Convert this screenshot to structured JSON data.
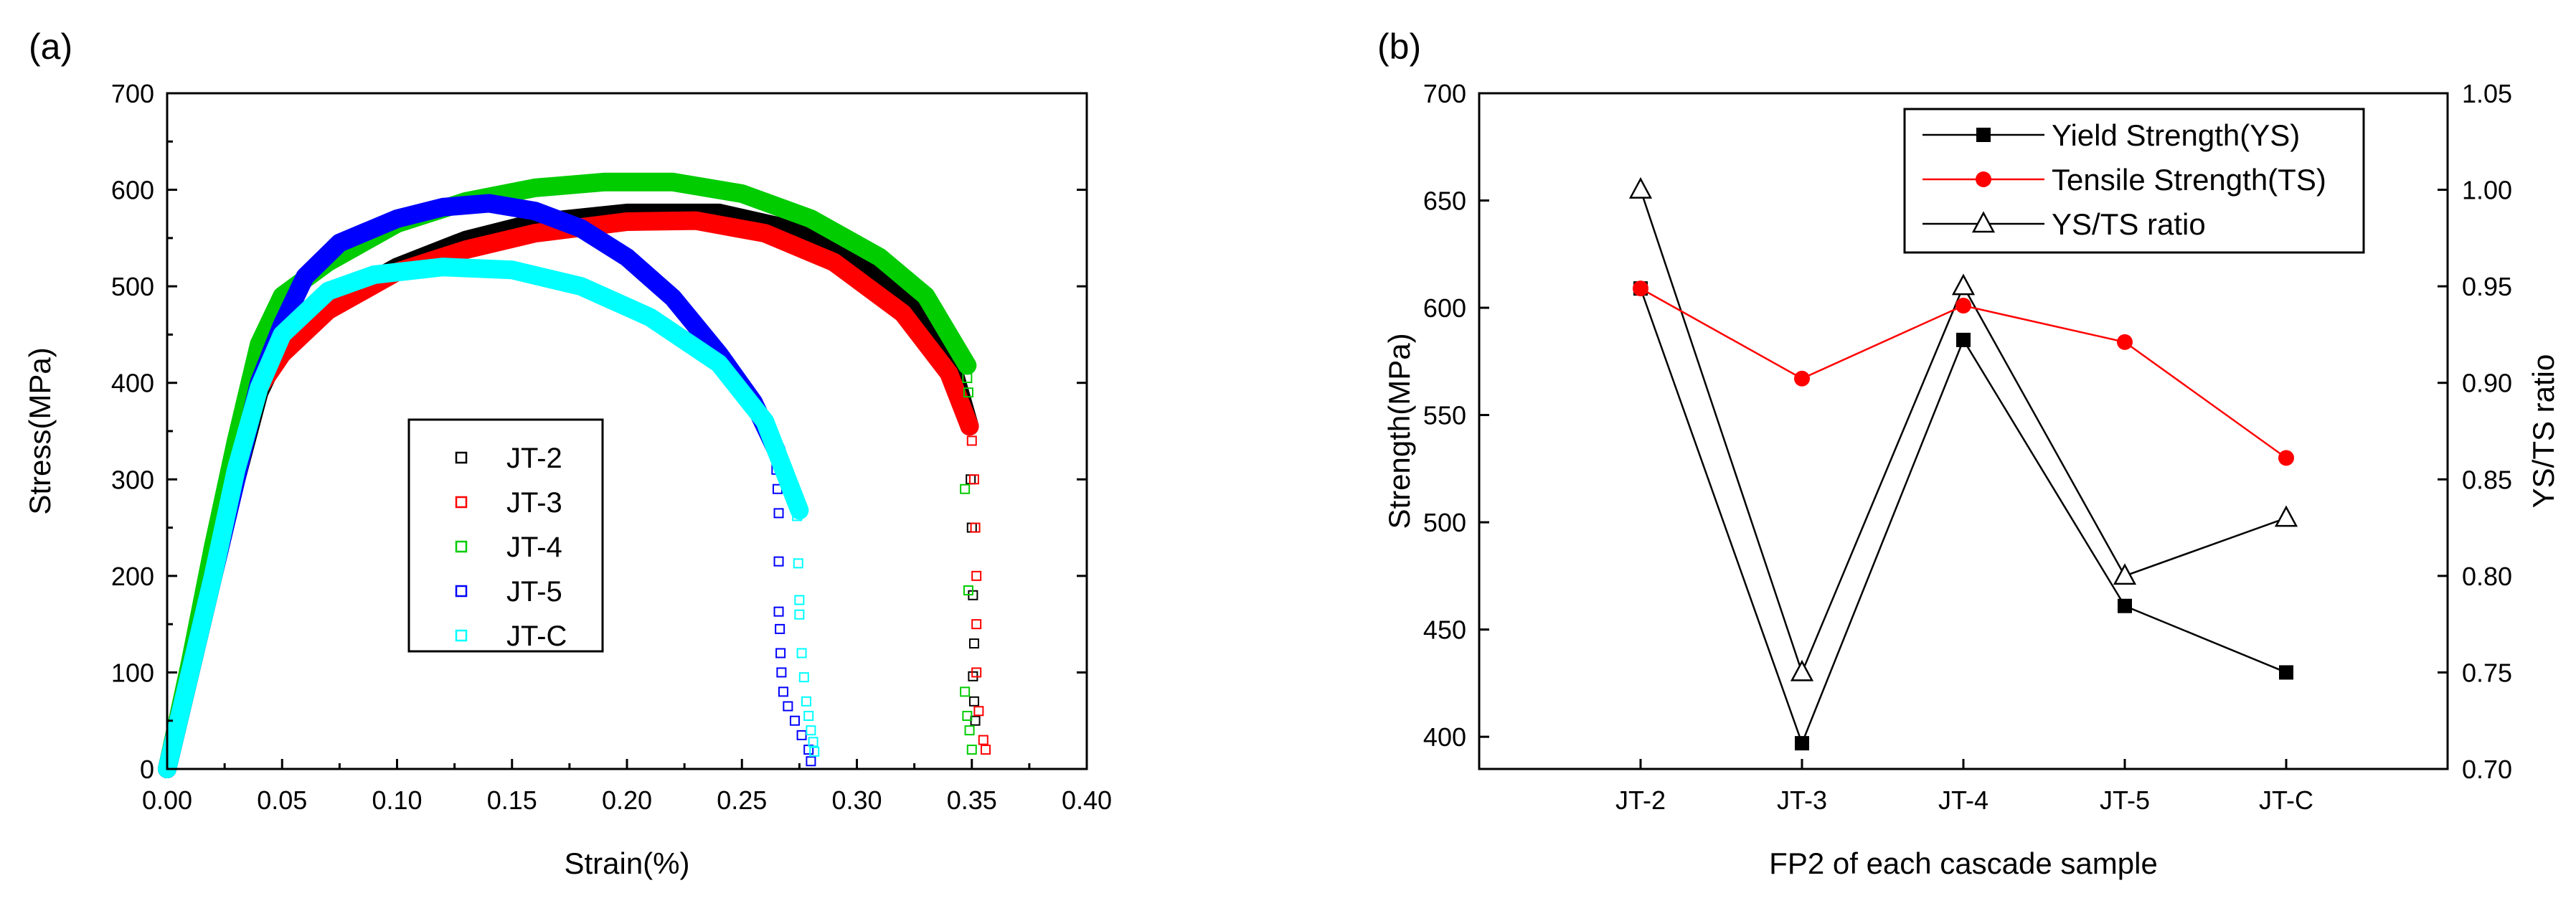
{
  "chart_data": [
    {
      "panel": "(a)",
      "type": "scatter",
      "xlabel": "Strain(%)",
      "ylabel": "Stress(MPa)",
      "xlim": [
        0,
        0.4
      ],
      "ylim": [
        0,
        700
      ],
      "xticks": [
        "0.00",
        "0.05",
        "0.10",
        "0.15",
        "0.20",
        "0.25",
        "0.30",
        "0.35",
        "0.40"
      ],
      "yticks": [
        "0",
        "100",
        "200",
        "300",
        "400",
        "500",
        "600",
        "700"
      ],
      "legend_position": "center-right",
      "series": [
        {
          "name": "JT-2",
          "color": "#000000",
          "curve": [
            [
              0,
              0
            ],
            [
              0.01,
              100
            ],
            [
              0.02,
              200
            ],
            [
              0.03,
              300
            ],
            [
              0.04,
              390
            ],
            [
              0.05,
              440
            ],
            [
              0.07,
              480
            ],
            [
              0.1,
              520
            ],
            [
              0.13,
              548
            ],
            [
              0.16,
              566
            ],
            [
              0.2,
              576
            ],
            [
              0.24,
              576
            ],
            [
              0.27,
              560
            ],
            [
              0.3,
              526
            ],
            [
              0.32,
              490
            ],
            [
              0.34,
              430
            ],
            [
              0.349,
              355
            ]
          ],
          "tail": [
            [
              0.3495,
              300
            ],
            [
              0.35,
              250
            ],
            [
              0.3505,
              180
            ],
            [
              0.351,
              130
            ],
            [
              0.3505,
              96
            ],
            [
              0.351,
              70
            ],
            [
              0.3515,
              50
            ]
          ]
        },
        {
          "name": "JT-3",
          "color": "#ff0000",
          "curve": [
            [
              0,
              0
            ],
            [
              0.01,
              100
            ],
            [
              0.02,
              200
            ],
            [
              0.03,
              310
            ],
            [
              0.04,
              395
            ],
            [
              0.05,
              430
            ],
            [
              0.07,
              475
            ],
            [
              0.1,
              515
            ],
            [
              0.13,
              538
            ],
            [
              0.16,
              555
            ],
            [
              0.2,
              567
            ],
            [
              0.23,
              568
            ],
            [
              0.26,
              555
            ],
            [
              0.29,
              525
            ],
            [
              0.32,
              472
            ],
            [
              0.34,
              410
            ],
            [
              0.349,
              355
            ]
          ],
          "tail": [
            [
              0.35,
              340
            ],
            [
              0.351,
              300
            ],
            [
              0.3515,
              250
            ],
            [
              0.352,
              200
            ],
            [
              0.352,
              150
            ],
            [
              0.352,
              100
            ],
            [
              0.353,
              60
            ],
            [
              0.355,
              30
            ],
            [
              0.356,
              20
            ]
          ]
        },
        {
          "name": "JT-4",
          "color": "#00cc00",
          "curve": [
            [
              0,
              0
            ],
            [
              0.01,
              110
            ],
            [
              0.02,
              230
            ],
            [
              0.03,
              340
            ],
            [
              0.04,
              440
            ],
            [
              0.05,
              490
            ],
            [
              0.07,
              525
            ],
            [
              0.1,
              565
            ],
            [
              0.13,
              588
            ],
            [
              0.16,
              602
            ],
            [
              0.19,
              608
            ],
            [
              0.22,
              608
            ],
            [
              0.25,
              596
            ],
            [
              0.28,
              570
            ],
            [
              0.31,
              530
            ],
            [
              0.33,
              490
            ],
            [
              0.348,
              418
            ]
          ],
          "tail": [
            [
              0.348,
              405
            ],
            [
              0.3485,
              390
            ],
            [
              0.347,
              290
            ],
            [
              0.3485,
              185
            ],
            [
              0.347,
              80
            ],
            [
              0.348,
              55
            ],
            [
              0.349,
              40
            ],
            [
              0.35,
              20
            ]
          ]
        },
        {
          "name": "JT-5",
          "color": "#0000ff",
          "curve": [
            [
              0,
              0
            ],
            [
              0.01,
              100
            ],
            [
              0.02,
              200
            ],
            [
              0.03,
              300
            ],
            [
              0.04,
              400
            ],
            [
              0.05,
              460
            ],
            [
              0.06,
              510
            ],
            [
              0.075,
              545
            ],
            [
              0.1,
              570
            ],
            [
              0.12,
              582
            ],
            [
              0.14,
              586
            ],
            [
              0.16,
              578
            ],
            [
              0.18,
              560
            ],
            [
              0.2,
              530
            ],
            [
              0.22,
              488
            ],
            [
              0.24,
              430
            ],
            [
              0.255,
              380
            ],
            [
              0.265,
              330
            ]
          ],
          "tail": [
            [
              0.265,
              310
            ],
            [
              0.2655,
              290
            ],
            [
              0.266,
              265
            ],
            [
              0.266,
              215
            ],
            [
              0.266,
              163
            ],
            [
              0.2665,
              145
            ],
            [
              0.2668,
              120
            ],
            [
              0.2672,
              100
            ],
            [
              0.268,
              80
            ],
            [
              0.27,
              65
            ],
            [
              0.273,
              50
            ],
            [
              0.276,
              35
            ],
            [
              0.279,
              20
            ],
            [
              0.28,
              8
            ]
          ]
        },
        {
          "name": "JT-C",
          "color": "#00ffff",
          "curve": [
            [
              0,
              0
            ],
            [
              0.01,
              100
            ],
            [
              0.02,
              200
            ],
            [
              0.03,
              310
            ],
            [
              0.04,
              395
            ],
            [
              0.05,
              450
            ],
            [
              0.07,
              495
            ],
            [
              0.09,
              512
            ],
            [
              0.12,
              520
            ],
            [
              0.15,
              517
            ],
            [
              0.18,
              500
            ],
            [
              0.21,
              468
            ],
            [
              0.24,
              420
            ],
            [
              0.26,
              360
            ],
            [
              0.275,
              268
            ]
          ],
          "tail": [
            [
              0.274,
              262
            ],
            [
              0.2745,
              213
            ],
            [
              0.275,
              175
            ],
            [
              0.275,
              160
            ],
            [
              0.276,
              120
            ],
            [
              0.277,
              95
            ],
            [
              0.278,
              70
            ],
            [
              0.279,
              55
            ],
            [
              0.28,
              40
            ],
            [
              0.281,
              28
            ],
            [
              0.2815,
              18
            ]
          ]
        }
      ]
    },
    {
      "panel": "(b)",
      "type": "line",
      "xlabel": "FP2 of each cascade sample",
      "ylabel": "Strength(MPa)",
      "ylabel_right": "YS/TS ratio",
      "categories": [
        "JT-2",
        "JT-3",
        "JT-4",
        "JT-5",
        "JT-C"
      ],
      "ylim": [
        385,
        700
      ],
      "ylim_right": [
        0.7,
        1.05
      ],
      "yticks": [
        "400",
        "450",
        "500",
        "550",
        "600",
        "650",
        "700"
      ],
      "yticks_right": [
        "0.70",
        "0.75",
        "0.80",
        "0.85",
        "0.90",
        "0.95",
        "1.00",
        "1.05"
      ],
      "legend_position": "top-right",
      "series": [
        {
          "name": "Yield Strength(YS)",
          "axis": "left",
          "color": "#000000",
          "marker": "square",
          "values": [
            609,
            397,
            585,
            461,
            430
          ]
        },
        {
          "name": "Tensile Strength(TS)",
          "axis": "left",
          "color": "#ff0000",
          "marker": "circle",
          "values": [
            609,
            567,
            601,
            584,
            530
          ]
        },
        {
          "name": "YS/TS ratio",
          "axis": "right",
          "color": "#000000",
          "marker": "triangle-open",
          "values": [
            1.0,
            0.75,
            0.95,
            0.8,
            0.83
          ]
        }
      ]
    }
  ]
}
